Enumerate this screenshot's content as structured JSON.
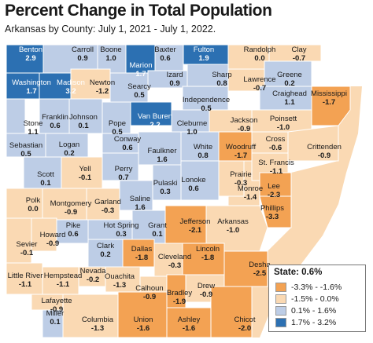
{
  "header": {
    "title": "Percent Change in Total Population",
    "subtitle": "Arkansas by County: July 1, 2021 - July 1, 2022."
  },
  "colors": {
    "orange": "#f3a253",
    "tan": "#fad9b3",
    "lightblue": "#bdcde6",
    "darkblue": "#2c70b2",
    "border": "#ffffff",
    "text": "#1a1a1a"
  },
  "legend": {
    "title": "State: 0.6%",
    "items": [
      {
        "label": "-3.3% - -1.6%",
        "class": "orange"
      },
      {
        "label": "-1.5% - 0.0%",
        "class": "tan"
      },
      {
        "label": "0.1% - 1.6%",
        "class": "lightblue"
      },
      {
        "label": "1.7% - 3.2%",
        "class": "darkblue"
      }
    ]
  },
  "counties": [
    {
      "name": "Benton",
      "value": "2.9",
      "class": "darkblue"
    },
    {
      "name": "Carroll",
      "value": "0.9",
      "class": "lightblue"
    },
    {
      "name": "Boone",
      "value": "1.0",
      "class": "lightblue"
    },
    {
      "name": "Marion",
      "value": "1.7",
      "class": "darkblue"
    },
    {
      "name": "Baxter",
      "value": "0.6",
      "class": "lightblue"
    },
    {
      "name": "Fulton",
      "value": "1.9",
      "class": "darkblue"
    },
    {
      "name": "Randolph",
      "value": "0.0",
      "class": "tan"
    },
    {
      "name": "Clay",
      "value": "-0.7",
      "class": "tan"
    },
    {
      "name": "Washington",
      "value": "1.7",
      "class": "darkblue"
    },
    {
      "name": "Madison",
      "value": "3.2",
      "class": "darkblue"
    },
    {
      "name": "Newton",
      "value": "-1.2",
      "class": "tan"
    },
    {
      "name": "Searcy",
      "value": "0.5",
      "class": "lightblue"
    },
    {
      "name": "Izard",
      "value": "0.9",
      "class": "lightblue"
    },
    {
      "name": "Sharp",
      "value": "0.8",
      "class": "lightblue"
    },
    {
      "name": "Lawrence",
      "value": "-0.7",
      "class": "tan"
    },
    {
      "name": "Greene",
      "value": "0.2",
      "class": "lightblue"
    },
    {
      "name": "Stone",
      "value": "1.1",
      "class": "lightblue"
    },
    {
      "name": "Independence",
      "value": "0.5",
      "class": "lightblue"
    },
    {
      "name": "Craighead",
      "value": "1.1",
      "class": "lightblue"
    },
    {
      "name": "Mississippi",
      "value": "-1.7",
      "class": "orange"
    },
    {
      "name": "Franklin",
      "value": "0.6",
      "class": "lightblue"
    },
    {
      "name": "Johnson",
      "value": "0.1",
      "class": "lightblue"
    },
    {
      "name": "Pope",
      "value": "0.5",
      "class": "lightblue"
    },
    {
      "name": "Van Buren",
      "value": "2.2",
      "class": "darkblue"
    },
    {
      "name": "Cleburne",
      "value": "1.0",
      "class": "lightblue"
    },
    {
      "name": "Jackson",
      "value": "-0.9",
      "class": "tan"
    },
    {
      "name": "Poinsett",
      "value": "-1.0",
      "class": "tan"
    },
    {
      "name": "Sebastian",
      "value": "0.5",
      "class": "lightblue"
    },
    {
      "name": "Logan",
      "value": "0.2",
      "class": "lightblue"
    },
    {
      "name": "Conway",
      "value": "0.6",
      "class": "lightblue"
    },
    {
      "name": "Faulkner",
      "value": "1.6",
      "class": "lightblue"
    },
    {
      "name": "White",
      "value": "0.8",
      "class": "lightblue"
    },
    {
      "name": "Woodruff",
      "value": "-1.7",
      "class": "orange"
    },
    {
      "name": "Cross",
      "value": "-0.6",
      "class": "tan"
    },
    {
      "name": "Crittenden",
      "value": "-0.9",
      "class": "tan"
    },
    {
      "name": "Scott",
      "value": "0.1",
      "class": "lightblue"
    },
    {
      "name": "Yell",
      "value": "-0.1",
      "class": "tan"
    },
    {
      "name": "Perry",
      "value": "0.7",
      "class": "lightblue"
    },
    {
      "name": "St. Francis",
      "value": "-1.1",
      "class": "tan"
    },
    {
      "name": "Prairie",
      "value": "-0.3",
      "class": "tan"
    },
    {
      "name": "Lonoke",
      "value": "0.6",
      "class": "lightblue"
    },
    {
      "name": "Pulaski",
      "value": "0.3",
      "class": "lightblue"
    },
    {
      "name": "Saline",
      "value": "1.6",
      "class": "lightblue"
    },
    {
      "name": "Polk",
      "value": "0.0",
      "class": "tan"
    },
    {
      "name": "Montgomery",
      "value": "-0.9",
      "class": "tan"
    },
    {
      "name": "Garland",
      "value": "-0.3",
      "class": "tan"
    },
    {
      "name": "Monroe",
      "value": "-1.4",
      "class": "tan"
    },
    {
      "name": "Lee",
      "value": "-2.3",
      "class": "orange"
    },
    {
      "name": "Phillips",
      "value": "-3.3",
      "class": "orange"
    },
    {
      "name": "Arkansas",
      "value": "-1.0",
      "class": "tan"
    },
    {
      "name": "Jefferson",
      "value": "-2.1",
      "class": "orange"
    },
    {
      "name": "Hot Spring",
      "value": "0.3",
      "class": "lightblue"
    },
    {
      "name": "Grant",
      "value": "0.1",
      "class": "lightblue"
    },
    {
      "name": "Pike",
      "value": "0.6",
      "class": "lightblue"
    },
    {
      "name": "Howard",
      "value": "-0.9",
      "class": "tan"
    },
    {
      "name": "Sevier",
      "value": "-0.1",
      "class": "tan"
    },
    {
      "name": "Clark",
      "value": "0.2",
      "class": "lightblue"
    },
    {
      "name": "Dallas",
      "value": "-1.8",
      "class": "orange"
    },
    {
      "name": "Cleveland",
      "value": "-0.3",
      "class": "tan"
    },
    {
      "name": "Lincoln",
      "value": "-1.8",
      "class": "orange"
    },
    {
      "name": "Desha",
      "value": "-2.5",
      "class": "orange"
    },
    {
      "name": "Little River",
      "value": "-1.1",
      "class": "tan"
    },
    {
      "name": "Hempstead",
      "value": "-1.1",
      "class": "tan"
    },
    {
      "name": "Nevada",
      "value": "-0.2",
      "class": "tan"
    },
    {
      "name": "Ouachita",
      "value": "-1.3",
      "class": "tan"
    },
    {
      "name": "Calhoun",
      "value": "-0.9",
      "class": "tan"
    },
    {
      "name": "Bradley",
      "value": "-1.9",
      "class": "orange"
    },
    {
      "name": "Drew",
      "value": "-0.9",
      "class": "tan"
    },
    {
      "name": "Lafayette",
      "value": "-0.9",
      "class": "tan"
    },
    {
      "name": "Miller",
      "value": "0.1",
      "class": "lightblue"
    },
    {
      "name": "Columbia",
      "value": "-1.3",
      "class": "tan"
    },
    {
      "name": "Union",
      "value": "-1.6",
      "class": "orange"
    },
    {
      "name": "Ashley",
      "value": "-1.6",
      "class": "orange"
    },
    {
      "name": "Chicot",
      "value": "-2.0",
      "class": "orange"
    }
  ]
}
